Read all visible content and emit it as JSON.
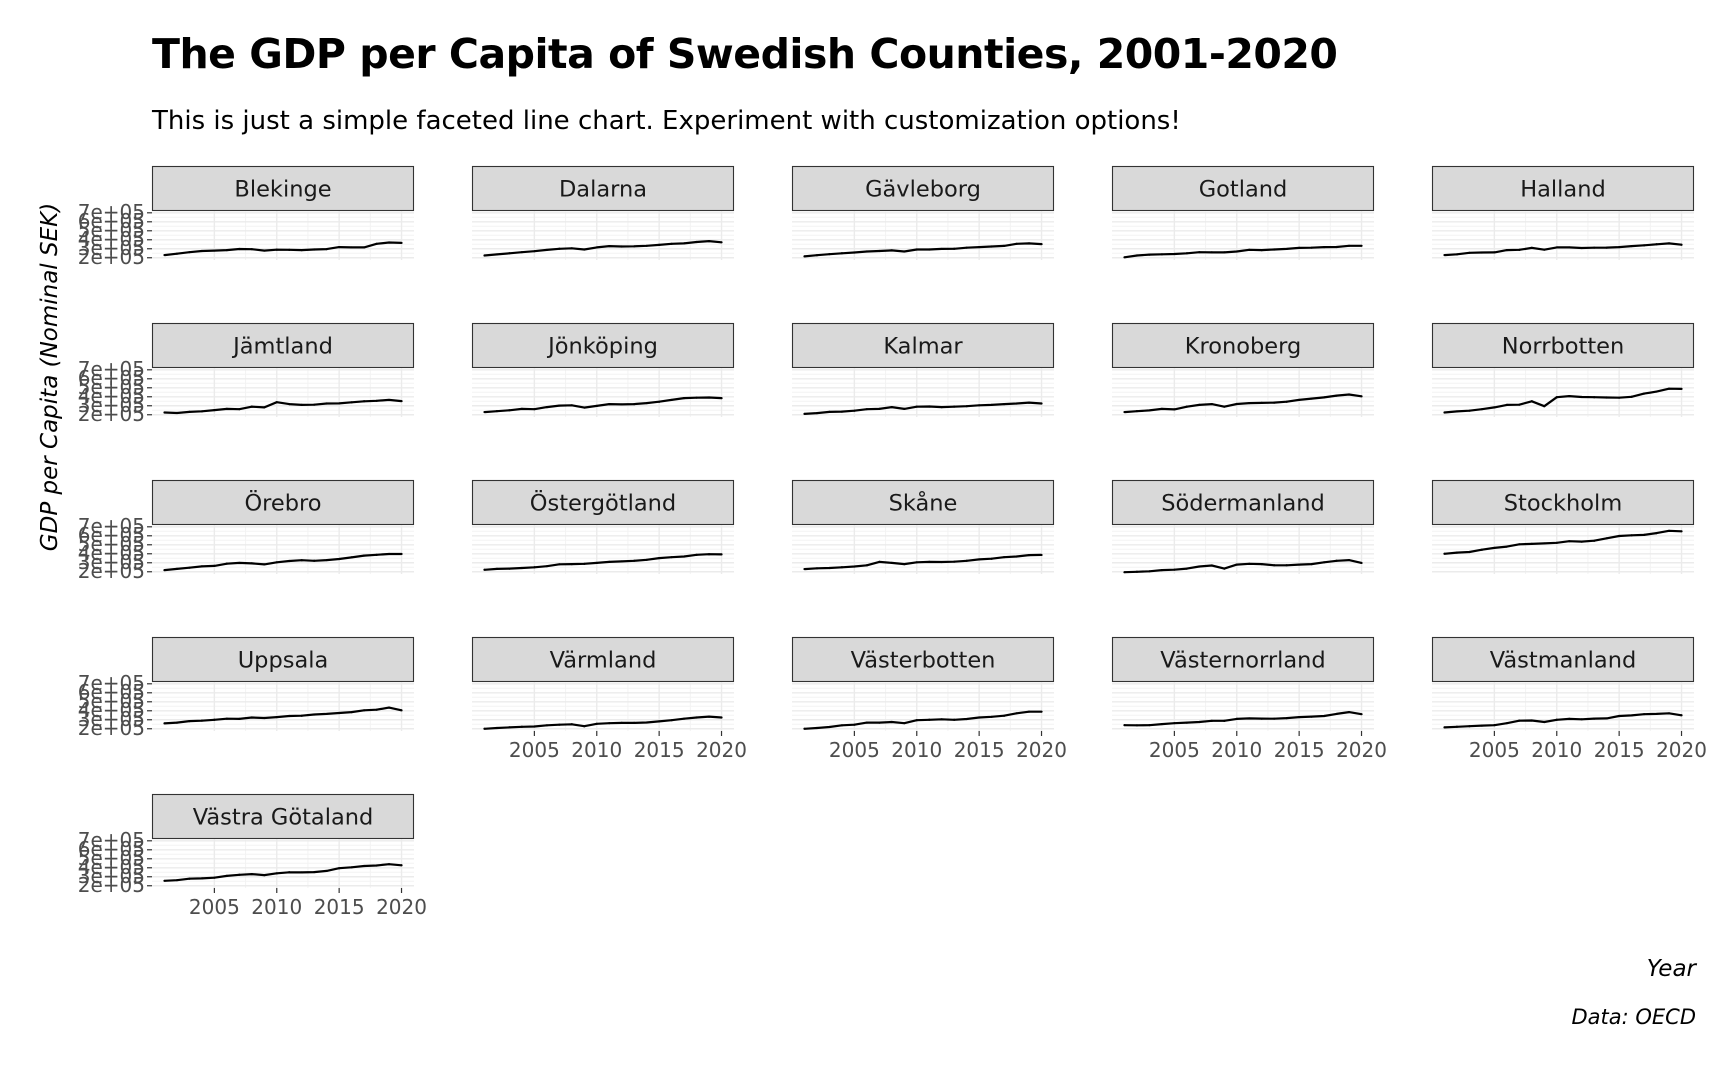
{
  "chart_data": {
    "type": "line",
    "facet": "wrap",
    "title": "The GDP per Capita of Swedish Counties, 2001-2020",
    "subtitle": "This is just a simple faceted line chart. Experiment with customization options!",
    "xlabel": "Year",
    "ylabel": "GDP per Capita (Nominal SEK)",
    "caption": "Data: OECD",
    "x": [
      2001,
      2002,
      2003,
      2004,
      2005,
      2006,
      2007,
      2008,
      2009,
      2010,
      2011,
      2012,
      2013,
      2014,
      2015,
      2016,
      2017,
      2018,
      2019,
      2020
    ],
    "x_ticks": [
      "2005",
      "2010",
      "2015",
      "2020"
    ],
    "y_ticks": [
      "2e+05",
      "3e+05",
      "4e+05",
      "5e+05",
      "6e+05",
      "7e+05"
    ],
    "xlim": [
      2000,
      2021
    ],
    "ylim": [
      175000,
      720000
    ],
    "grid": true,
    "line_color": "#000000",
    "strip_color": "#d9d9d9",
    "series": [
      {
        "name": "Blekinge",
        "values": [
          230000,
          245000,
          262000,
          275000,
          280000,
          285000,
          297000,
          295000,
          280000,
          290000,
          288000,
          285000,
          292000,
          296000,
          318000,
          315000,
          315000,
          355000,
          370000,
          365000
        ]
      },
      {
        "name": "Dalarna",
        "values": [
          225000,
          237000,
          250000,
          262000,
          273000,
          287000,
          300000,
          305000,
          292000,
          315000,
          330000,
          325000,
          327000,
          333000,
          343000,
          355000,
          360000,
          375000,
          385000,
          372000
        ]
      },
      {
        "name": "Gävleborg",
        "values": [
          215000,
          228000,
          240000,
          250000,
          258000,
          270000,
          275000,
          282000,
          270000,
          292000,
          292000,
          298000,
          300000,
          312000,
          318000,
          325000,
          332000,
          355000,
          360000,
          352000
        ]
      },
      {
        "name": "Gotland",
        "values": [
          205000,
          225000,
          235000,
          238000,
          242000,
          250000,
          262000,
          260000,
          260000,
          270000,
          288000,
          285000,
          292000,
          298000,
          310000,
          312000,
          318000,
          320000,
          333000,
          333000
        ]
      },
      {
        "name": "Halland",
        "values": [
          230000,
          238000,
          255000,
          258000,
          260000,
          285000,
          288000,
          310000,
          290000,
          315000,
          315000,
          308000,
          312000,
          313000,
          318000,
          330000,
          338000,
          350000,
          360000,
          345000
        ]
      },
      {
        "name": "Jämtland",
        "values": [
          225000,
          220000,
          232000,
          238000,
          252000,
          265000,
          262000,
          290000,
          282000,
          340000,
          318000,
          310000,
          312000,
          325000,
          326000,
          338000,
          350000,
          355000,
          365000,
          352000
        ]
      },
      {
        "name": "Jönköping",
        "values": [
          230000,
          240000,
          250000,
          265000,
          262000,
          285000,
          302000,
          305000,
          280000,
          298000,
          318000,
          315000,
          318000,
          330000,
          345000,
          365000,
          385000,
          390000,
          392000,
          385000
        ]
      },
      {
        "name": "Kalmar",
        "values": [
          210000,
          218000,
          232000,
          235000,
          245000,
          262000,
          265000,
          285000,
          265000,
          290000,
          292000,
          285000,
          290000,
          295000,
          305000,
          310000,
          318000,
          325000,
          335000,
          325000
        ]
      },
      {
        "name": "Kronoberg",
        "values": [
          230000,
          240000,
          248000,
          265000,
          260000,
          290000,
          310000,
          318000,
          290000,
          320000,
          330000,
          332000,
          335000,
          345000,
          365000,
          380000,
          393000,
          413000,
          425000,
          405000
        ]
      },
      {
        "name": "Norrbotten",
        "values": [
          225000,
          237000,
          245000,
          262000,
          282000,
          310000,
          312000,
          350000,
          295000,
          395000,
          408000,
          398000,
          395000,
          392000,
          390000,
          400000,
          435000,
          458000,
          490000,
          488000
        ]
      },
      {
        "name": "Örebro",
        "values": [
          218000,
          232000,
          245000,
          260000,
          265000,
          290000,
          298000,
          293000,
          282000,
          305000,
          320000,
          328000,
          322000,
          330000,
          342000,
          360000,
          380000,
          388000,
          398000,
          398000
        ]
      },
      {
        "name": "Östergötland",
        "values": [
          222000,
          232000,
          235000,
          242000,
          250000,
          262000,
          283000,
          285000,
          288000,
          298000,
          310000,
          315000,
          322000,
          333000,
          352000,
          362000,
          370000,
          388000,
          395000,
          393000
        ]
      },
      {
        "name": "Skåne",
        "values": [
          230000,
          238000,
          242000,
          250000,
          258000,
          272000,
          310000,
          298000,
          285000,
          305000,
          310000,
          308000,
          312000,
          322000,
          337000,
          345000,
          362000,
          370000,
          385000,
          387000
        ]
      },
      {
        "name": "Södermanland",
        "values": [
          195000,
          200000,
          205000,
          218000,
          223000,
          235000,
          258000,
          270000,
          235000,
          280000,
          288000,
          285000,
          272000,
          272000,
          280000,
          285000,
          305000,
          322000,
          330000,
          298000
        ]
      },
      {
        "name": "Stockholm",
        "values": [
          400000,
          413000,
          420000,
          445000,
          465000,
          480000,
          505000,
          510000,
          515000,
          522000,
          540000,
          535000,
          545000,
          572000,
          598000,
          605000,
          610000,
          630000,
          655000,
          650000
        ]
      },
      {
        "name": "Uppsala",
        "values": [
          260000,
          268000,
          285000,
          290000,
          300000,
          312000,
          310000,
          325000,
          320000,
          330000,
          342000,
          345000,
          358000,
          365000,
          375000,
          385000,
          405000,
          412000,
          435000,
          405000
        ]
      },
      {
        "name": "Värmland",
        "values": [
          200000,
          208000,
          215000,
          222000,
          225000,
          238000,
          245000,
          250000,
          228000,
          255000,
          262000,
          265000,
          265000,
          270000,
          282000,
          295000,
          312000,
          325000,
          335000,
          325000
        ]
      },
      {
        "name": "Västerbotten",
        "values": [
          200000,
          208000,
          220000,
          238000,
          245000,
          268000,
          268000,
          275000,
          262000,
          295000,
          300000,
          305000,
          300000,
          308000,
          325000,
          333000,
          345000,
          372000,
          390000,
          390000
        ]
      },
      {
        "name": "Västernorrland",
        "values": [
          240000,
          238000,
          240000,
          252000,
          262000,
          268000,
          275000,
          288000,
          288000,
          310000,
          315000,
          313000,
          312000,
          318000,
          330000,
          335000,
          342000,
          365000,
          385000,
          362000
        ]
      },
      {
        "name": "Västmanland",
        "values": [
          215000,
          222000,
          228000,
          235000,
          240000,
          262000,
          290000,
          292000,
          275000,
          300000,
          310000,
          305000,
          313000,
          315000,
          342000,
          348000,
          362000,
          365000,
          372000,
          350000
        ]
      },
      {
        "name": "Västra Götaland",
        "values": [
          255000,
          262000,
          278000,
          282000,
          290000,
          310000,
          322000,
          330000,
          318000,
          338000,
          350000,
          348000,
          352000,
          365000,
          395000,
          405000,
          420000,
          425000,
          440000,
          428000
        ]
      }
    ]
  }
}
